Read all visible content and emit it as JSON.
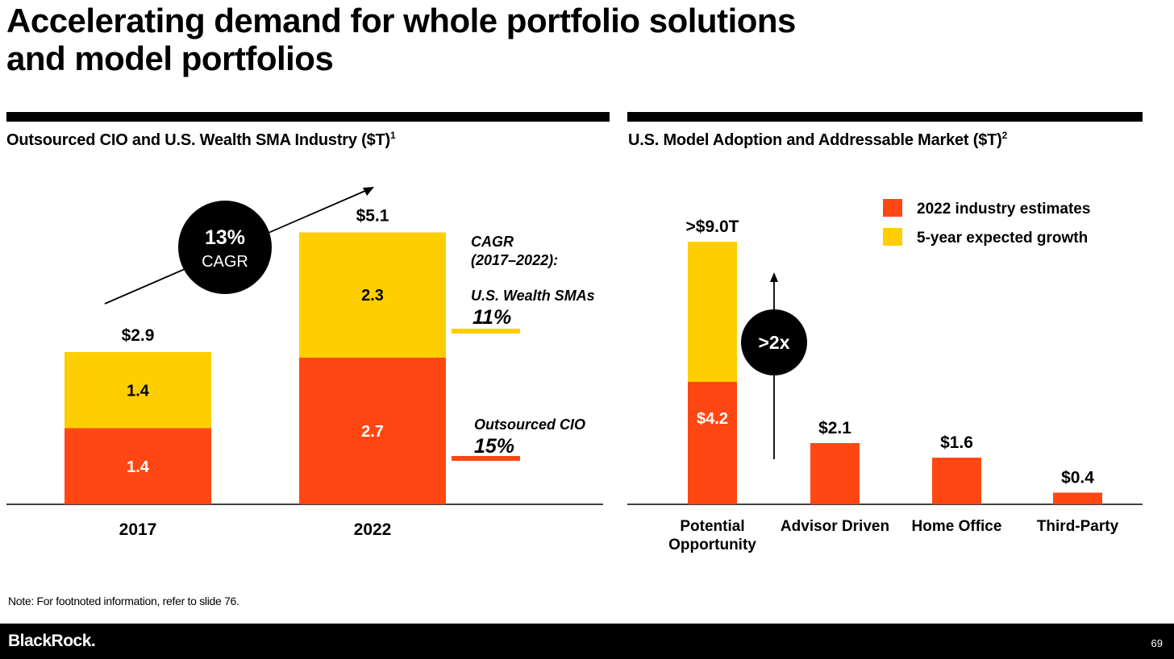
{
  "slide": {
    "title_line1": "Accelerating demand for whole portfolio solutions",
    "title_line2": "and model portfolios",
    "note": "Note: For footnoted information, refer to slide 76.",
    "brand": "BlackRock.",
    "page_number": "69"
  },
  "colors": {
    "orange": "#FF4713",
    "yellow": "#FFCE00",
    "black": "#000000",
    "white": "#FFFFFF"
  },
  "chart_data": [
    {
      "type": "bar",
      "stacked": true,
      "title": "Outsourced CIO and U.S. Wealth SMA Industry ($T)",
      "title_footnote": "1",
      "categories": [
        "2017",
        "2022"
      ],
      "series": [
        {
          "name": "Outsourced CIO",
          "color": "#FF4713",
          "values": [
            1.4,
            2.7
          ],
          "labels": [
            "1.4",
            "2.7"
          ]
        },
        {
          "name": "U.S. Wealth SMAs",
          "color": "#FFCE00",
          "values": [
            1.4,
            2.3
          ],
          "labels": [
            "1.4",
            "2.3"
          ]
        }
      ],
      "totals": [
        "$2.9",
        "$5.1"
      ],
      "ylim": [
        0,
        6
      ],
      "cagr_badge": {
        "value": "13%",
        "label": "CAGR"
      },
      "cagr_heading": [
        "CAGR",
        "(2017–2022):"
      ],
      "cagr_breakdown": [
        {
          "name": "U.S. Wealth SMAs",
          "value": "11%",
          "color": "#FFCE00"
        },
        {
          "name": "Outsourced CIO",
          "value": "15%",
          "color": "#FF4713"
        }
      ]
    },
    {
      "type": "bar",
      "stacked": true,
      "title": "U.S. Model Adoption and Addressable Market ($T)",
      "title_footnote": "2",
      "categories": [
        [
          "Potential",
          "Opportunity"
        ],
        [
          "Advisor Driven"
        ],
        [
          "Home Office"
        ],
        [
          "Third-Party"
        ]
      ],
      "series": [
        {
          "name": "2022 industry estimates",
          "color": "#FF4713",
          "values": [
            4.2,
            2.1,
            1.6,
            0.4
          ]
        },
        {
          "name": "5-year expected growth",
          "color": "#FFCE00",
          "values": [
            4.8,
            0,
            0,
            0
          ]
        }
      ],
      "top_labels": [
        ">$9.0T",
        "$2.1",
        "$1.6",
        "$0.4"
      ],
      "inner_label": "$4.2",
      "badge": ">2x",
      "legend": [
        "2022 industry estimates",
        "5-year expected growth"
      ],
      "legend_position": "top-right",
      "ylim": [
        0,
        9
      ]
    }
  ]
}
